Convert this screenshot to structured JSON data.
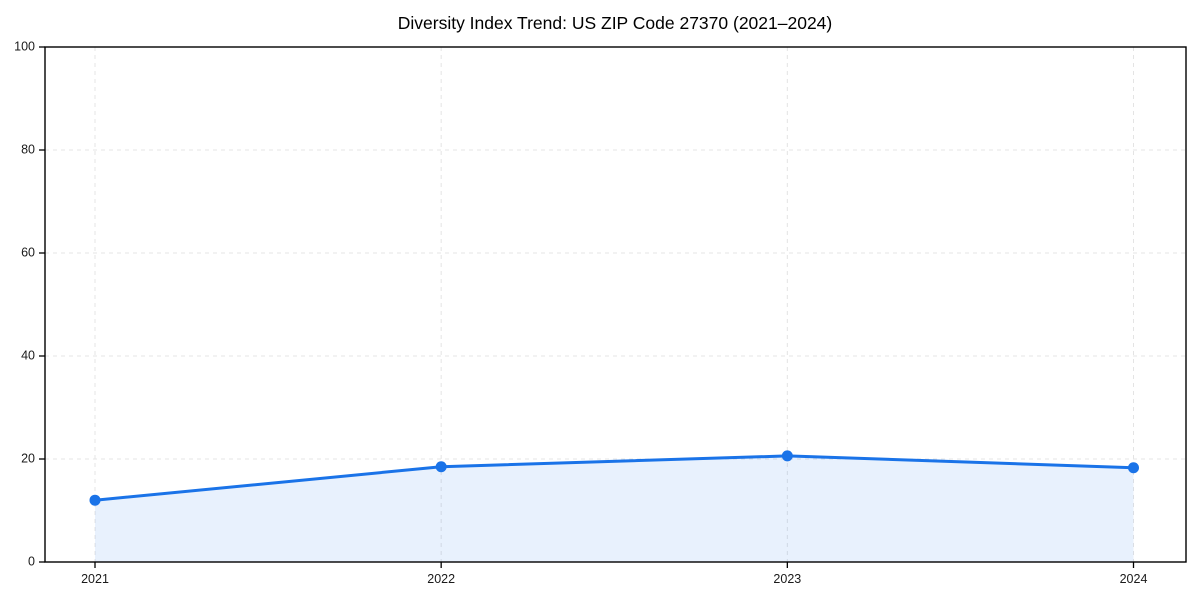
{
  "page": {
    "background_color": "#ffffff"
  },
  "chart_data": {
    "type": "area",
    "title": "Diversity Index Trend: US ZIP Code 27370 (2021–2024)",
    "categories": [
      "2021",
      "2022",
      "2023",
      "2024"
    ],
    "values": [
      12.0,
      18.5,
      20.6,
      18.3
    ],
    "xlabel": "",
    "ylabel": "",
    "ylim": [
      0,
      100
    ],
    "yticks": [
      0,
      20,
      40,
      60,
      80,
      100
    ],
    "grid": true,
    "grid_line_style": "dashed",
    "grid_color": "#e4e4e4",
    "legend_position": "none",
    "line_color": "#1a73e8",
    "fill_color": "rgba(26,115,232,0.10)",
    "marker_shape": "circle",
    "frame_color": "#000000"
  }
}
